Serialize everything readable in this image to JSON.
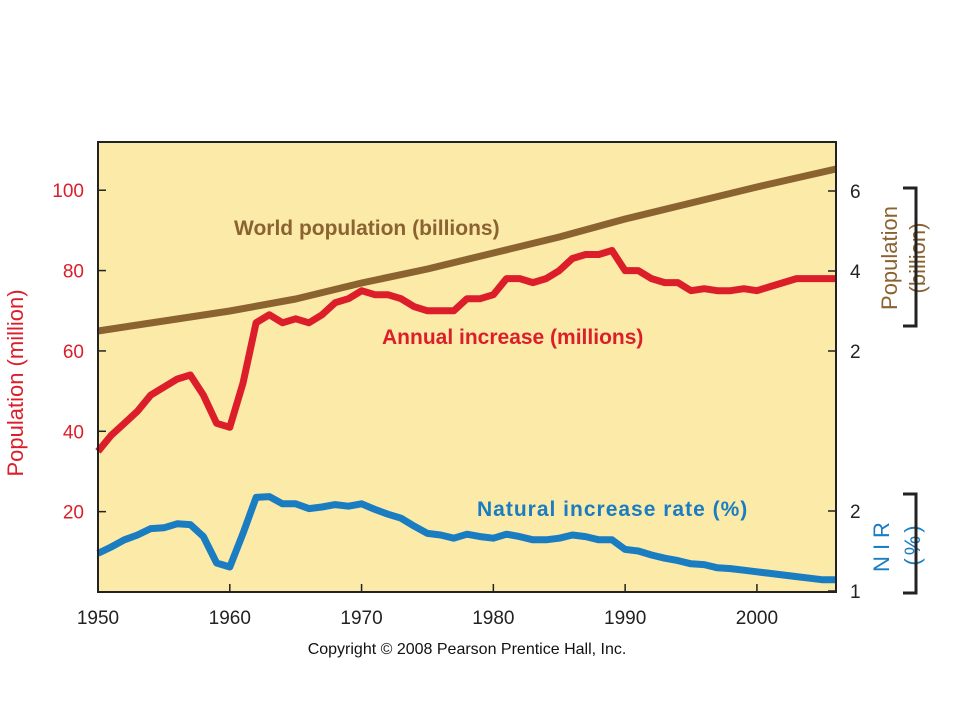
{
  "colors": {
    "plot_bg": "#fbeaa8",
    "axis": "#222222",
    "world_population": "#8a6331",
    "annual_increase": "#dc1e2b",
    "natural_increase_rate": "#1a7cc1"
  },
  "copyright": "Copyright © 2008 Pearson Prentice Hall, Inc.",
  "chart_data": {
    "type": "line",
    "x_axis": {
      "range": [
        1950,
        2006
      ],
      "ticks": [
        1950,
        1960,
        1970,
        1980,
        1990,
        2000
      ]
    },
    "left_axis": {
      "label": "Population (million)",
      "range": [
        0,
        112
      ],
      "ticks": [
        20,
        40,
        60,
        80,
        100
      ],
      "tick_labels": [
        "20",
        "40",
        "60",
        "80",
        "100"
      ]
    },
    "right_axis_population": {
      "label_line1": "Population",
      "label_line2": "(billion)",
      "ticks": [
        2,
        4,
        6
      ],
      "tick_labels": [
        "2",
        "4",
        "6"
      ]
    },
    "right_axis_nir": {
      "label_line1": "NIR",
      "label_line2": "(%)",
      "ticks": [
        1,
        2
      ],
      "tick_labels": [
        "1",
        "2"
      ]
    },
    "series": [
      {
        "name": "World population (billions)",
        "x": [
          1950,
          1955,
          1960,
          1965,
          1970,
          1975,
          1980,
          1985,
          1990,
          1995,
          2000,
          2006
        ],
        "y": [
          2.5,
          2.75,
          3.0,
          3.3,
          3.7,
          4.05,
          4.45,
          4.85,
          5.3,
          5.7,
          6.1,
          6.55
        ]
      },
      {
        "name": "Annual increase (millions)",
        "x": [
          1950,
          1951,
          1952,
          1953,
          1954,
          1955,
          1956,
          1957,
          1958,
          1959,
          1960,
          1961,
          1962,
          1963,
          1964,
          1965,
          1966,
          1967,
          1968,
          1969,
          1970,
          1971,
          1972,
          1973,
          1974,
          1975,
          1976,
          1977,
          1978,
          1979,
          1980,
          1981,
          1982,
          1983,
          1984,
          1985,
          1986,
          1987,
          1988,
          1989,
          1990,
          1991,
          1992,
          1993,
          1994,
          1995,
          1996,
          1997,
          1998,
          1999,
          2000,
          2001,
          2002,
          2003,
          2004,
          2005,
          2006
        ],
        "y": [
          35,
          39,
          42,
          45,
          49,
          51,
          53,
          54,
          49,
          42,
          41,
          52,
          67,
          69,
          67,
          68,
          67,
          69,
          72,
          73,
          75,
          74,
          74,
          73,
          71,
          70,
          70,
          70,
          73,
          73,
          74,
          78,
          78,
          77,
          78,
          80,
          83,
          84,
          84,
          85,
          80,
          80,
          78,
          77,
          77,
          75,
          75.5,
          75,
          75,
          75.5,
          75,
          76,
          77,
          78,
          78,
          78,
          78
        ]
      },
      {
        "name": "Natural increase rate (%)",
        "x": [
          1950,
          1951,
          1952,
          1953,
          1954,
          1955,
          1956,
          1957,
          1958,
          1959,
          1960,
          1961,
          1962,
          1963,
          1964,
          1965,
          1966,
          1967,
          1968,
          1969,
          1970,
          1971,
          1972,
          1973,
          1974,
          1975,
          1976,
          1977,
          1978,
          1979,
          1980,
          1981,
          1982,
          1983,
          1984,
          1985,
          1986,
          1987,
          1988,
          1989,
          1990,
          1991,
          1992,
          1993,
          1994,
          1995,
          1996,
          1997,
          1998,
          1999,
          2000,
          2001,
          2002,
          2003,
          2004,
          2005,
          2006
        ],
        "y": [
          1.47,
          1.55,
          1.64,
          1.7,
          1.78,
          1.79,
          1.84,
          1.83,
          1.68,
          1.35,
          1.3,
          1.72,
          2.17,
          2.18,
          2.09,
          2.09,
          2.03,
          2.05,
          2.08,
          2.06,
          2.09,
          2.02,
          1.96,
          1.91,
          1.81,
          1.72,
          1.7,
          1.66,
          1.71,
          1.68,
          1.66,
          1.71,
          1.68,
          1.64,
          1.64,
          1.66,
          1.7,
          1.68,
          1.64,
          1.64,
          1.52,
          1.5,
          1.45,
          1.41,
          1.38,
          1.34,
          1.33,
          1.29,
          1.28,
          1.26,
          1.24,
          1.22,
          1.2,
          1.18,
          1.16,
          1.14,
          1.14
        ]
      }
    ],
    "annotations": [
      "World population (billions)",
      "Annual increase (millions)",
      "Natural increase rate (%)"
    ]
  }
}
